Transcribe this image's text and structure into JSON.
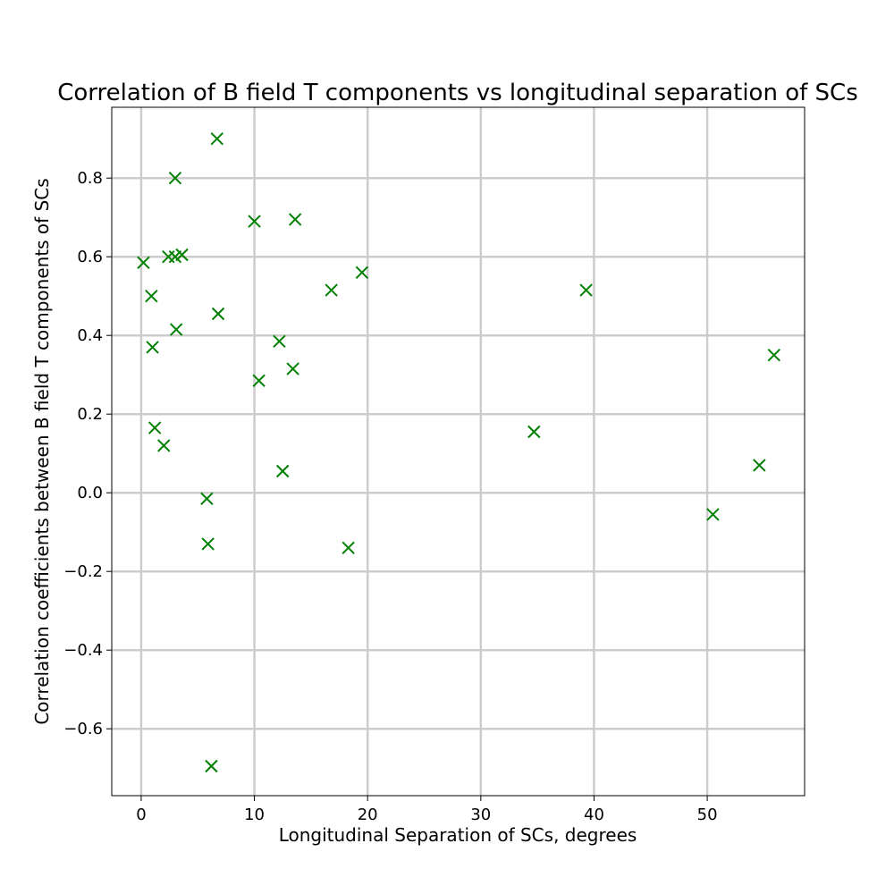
{
  "chart_data": {
    "type": "scatter",
    "title": "Correlation of B field T components vs longitudinal separation of SCs",
    "xlabel": "Longitudinal Separation of SCs, degrees",
    "ylabel": "Correlation coefficients between B field T components of SCs",
    "xlim": [
      -2.6,
      58.6
    ],
    "ylim": [
      -0.77,
      0.98
    ],
    "xticks": [
      0,
      10,
      20,
      30,
      40,
      50
    ],
    "xtick_labels": [
      "0",
      "10",
      "20",
      "30",
      "40",
      "50"
    ],
    "yticks": [
      -0.6,
      -0.4,
      -0.2,
      0.0,
      0.2,
      0.4,
      0.6,
      0.8
    ],
    "ytick_labels": [
      "−0.6",
      "−0.4",
      "−0.2",
      "0.0",
      "0.2",
      "0.4",
      "0.6",
      "0.8"
    ],
    "grid": true,
    "marker": "x",
    "color": "#008000",
    "series": [
      {
        "points": [
          {
            "x": 6.7,
            "y": 0.9
          },
          {
            "x": 3.0,
            "y": 0.8
          },
          {
            "x": 10.0,
            "y": 0.69
          },
          {
            "x": 13.6,
            "y": 0.695
          },
          {
            "x": 0.2,
            "y": 0.585
          },
          {
            "x": 2.4,
            "y": 0.6
          },
          {
            "x": 3.0,
            "y": 0.6
          },
          {
            "x": 3.6,
            "y": 0.605
          },
          {
            "x": 19.5,
            "y": 0.56
          },
          {
            "x": 16.8,
            "y": 0.515
          },
          {
            "x": 39.3,
            "y": 0.515
          },
          {
            "x": 0.9,
            "y": 0.5
          },
          {
            "x": 6.8,
            "y": 0.455
          },
          {
            "x": 3.1,
            "y": 0.415
          },
          {
            "x": 1.0,
            "y": 0.37
          },
          {
            "x": 12.2,
            "y": 0.385
          },
          {
            "x": 55.9,
            "y": 0.35
          },
          {
            "x": 13.4,
            "y": 0.315
          },
          {
            "x": 10.4,
            "y": 0.285
          },
          {
            "x": 1.2,
            "y": 0.165
          },
          {
            "x": 34.7,
            "y": 0.155
          },
          {
            "x": 2.0,
            "y": 0.12
          },
          {
            "x": 54.6,
            "y": 0.07
          },
          {
            "x": 12.5,
            "y": 0.055
          },
          {
            "x": 5.8,
            "y": -0.015
          },
          {
            "x": 50.5,
            "y": -0.055
          },
          {
            "x": 5.9,
            "y": -0.13
          },
          {
            "x": 18.3,
            "y": -0.14
          },
          {
            "x": 6.2,
            "y": -0.695
          }
        ]
      }
    ]
  }
}
